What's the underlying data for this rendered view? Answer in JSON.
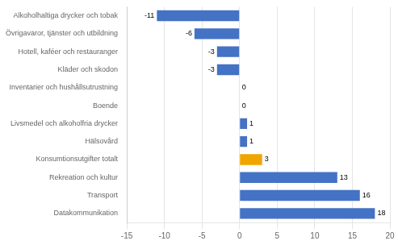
{
  "chart_data": {
    "type": "bar",
    "orientation": "horizontal",
    "categories": [
      "Alkoholhaltiga drycker och tobak",
      "Övrigavaror, tjänster och utbildning",
      "Hotell, kaféer och restauranger",
      "Kläder och skodon",
      "Inventarier och hushållsutrustning",
      "Boende",
      "Livsmedel och alkoholfria drycker",
      "Hälsovård",
      "Konsumtionsutgifter totalt",
      "Rekreation och kultur",
      "Transport",
      "Datakommunikation"
    ],
    "values": [
      -11,
      -6,
      -3,
      -3,
      0,
      0,
      1,
      1,
      3,
      13,
      16,
      18
    ],
    "colors": [
      "#4472c4",
      "#4472c4",
      "#4472c4",
      "#4472c4",
      "#4472c4",
      "#4472c4",
      "#4472c4",
      "#4472c4",
      "#f0a500",
      "#4472c4",
      "#4472c4",
      "#4472c4"
    ],
    "xlim": [
      -15,
      20
    ],
    "xticks": [
      -15,
      -10,
      -5,
      0,
      5,
      10,
      15,
      20
    ],
    "grid": true,
    "data_labels": true
  }
}
